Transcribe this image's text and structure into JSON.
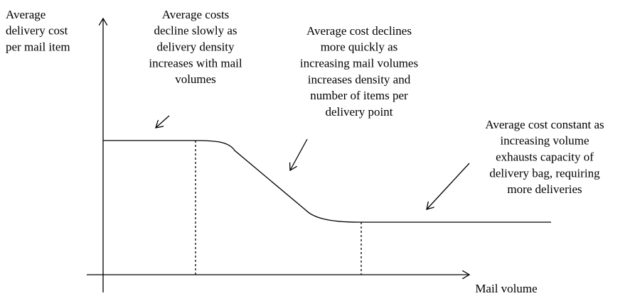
{
  "y_axis_label": [
    "Average",
    "delivery  cost",
    "per mail item"
  ],
  "x_axis_label": "Mail volume",
  "annotations": [
    {
      "lines": [
        "Average costs",
        "decline slowly as",
        "delivery density",
        "increases with mail",
        "volumes"
      ]
    },
    {
      "lines": [
        "Average cost declines",
        "more quickly as",
        "increasing mail volumes",
        "increases density and",
        "number of items per",
        "delivery point"
      ]
    },
    {
      "lines": [
        "Average cost constant as",
        "increasing volume",
        "exhausts capacity of",
        "delivery bag, requiring",
        "more deliveries"
      ]
    }
  ]
}
